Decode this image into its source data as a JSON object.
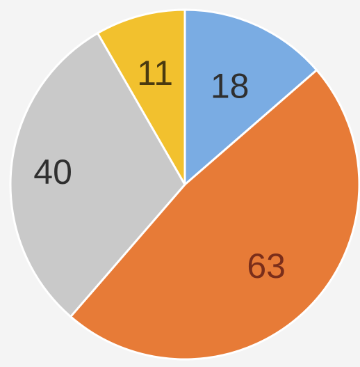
{
  "chart_data": {
    "type": "pie",
    "title": "",
    "start_angle_deg": 0,
    "direction": "clockwise",
    "slices": [
      {
        "label": "18",
        "value": 18,
        "color": "#7aace3",
        "text_color": "#2f2f2f"
      },
      {
        "label": "63",
        "value": 63,
        "color": "#e77b37",
        "text_color": "#7a2e1a"
      },
      {
        "label": "40",
        "value": 40,
        "color": "#c9c9c9",
        "text_color": "#2f2f2f"
      },
      {
        "label": "11",
        "value": 11,
        "color": "#f2c12e",
        "text_color": "#4a3a10"
      }
    ]
  }
}
